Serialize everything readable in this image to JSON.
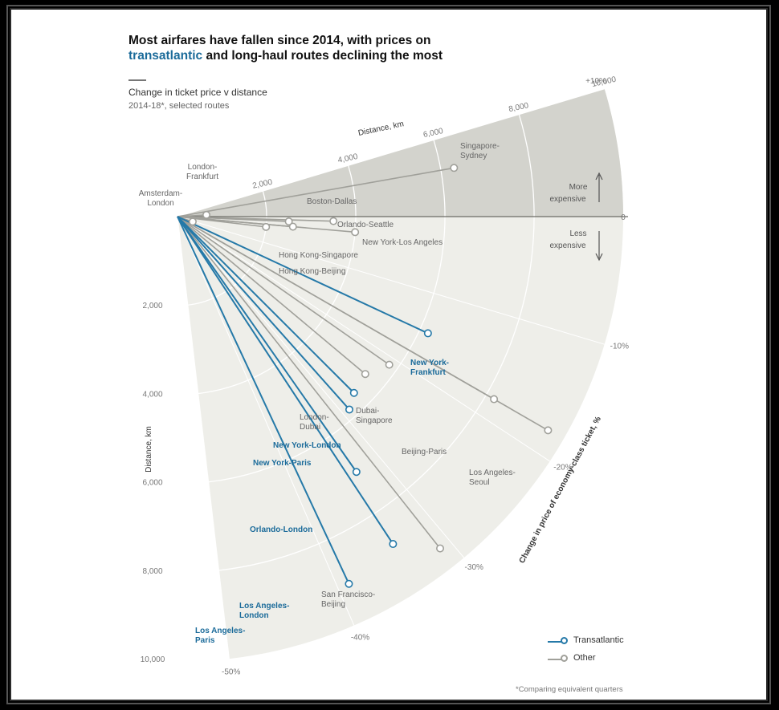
{
  "title": {
    "line1": "Most airfares have fallen since 2014, with prices on",
    "highlight": "transatlantic",
    "rest": " and long-haul routes declining the most"
  },
  "subtitle": "Change in ticket price v distance",
  "subnote": "2014-18*, selected routes",
  "footnote": "*Comparing equivalent quarters",
  "annotations": {
    "more": [
      "More",
      "expensive"
    ],
    "less": [
      "Less",
      "expensive"
    ]
  },
  "legend": [
    {
      "name": "Transatlantic",
      "color": "#2579a8"
    },
    {
      "name": "Other",
      "color": "#a0a09a"
    }
  ],
  "chart_data": {
    "type": "scatter",
    "xlabel": "Distance, km",
    "ylabel": "Change in price of economy-class ticket, %",
    "distance_ticks": [
      "2,000",
      "4,000",
      "6,000",
      "8,000",
      "10,000"
    ],
    "distance_tick_values": [
      2000,
      4000,
      6000,
      8000,
      10000
    ],
    "angle_ticks": [
      "+10%",
      "0",
      "-10%",
      "-20%",
      "-30%",
      "-40%",
      "-50%"
    ],
    "angle_tick_values": [
      10,
      0,
      -10,
      -20,
      -30,
      -40,
      -50
    ],
    "xlim": [
      0,
      10000
    ],
    "ylim": [
      -50,
      10
    ],
    "colors": {
      "transatlantic": "#2579a8",
      "other": "#a0a09a"
    },
    "points": [
      {
        "label": [
          "Singapore-",
          "Sydney"
        ],
        "distance": 6300,
        "change": 6,
        "group": "other"
      },
      {
        "label": [
          "London-",
          "Frankfurt"
        ],
        "distance": 650,
        "change": 2,
        "group": "other"
      },
      {
        "label": [
          "Amsterdam-",
          "London"
        ],
        "distance": 360,
        "change": -11,
        "group": "other"
      },
      {
        "label": [
          "Boston-Dallas"
        ],
        "distance": 2500,
        "change": -1.5,
        "group": "other"
      },
      {
        "label": [
          "Orlando-Seattle"
        ],
        "distance": 3500,
        "change": -1,
        "group": "other"
      },
      {
        "label": [
          "New York-Los Angeles"
        ],
        "distance": 4000,
        "change": -3,
        "group": "other"
      },
      {
        "label": [
          "Hong Kong-Singapore"
        ],
        "distance": 2600,
        "change": -3,
        "group": "other"
      },
      {
        "label": [
          "Hong Kong-Beijing"
        ],
        "distance": 2000,
        "change": -4,
        "group": "other"
      },
      {
        "label": [
          "New York-",
          "Frankfurt"
        ],
        "distance": 6200,
        "change": -15,
        "group": "transatlantic"
      },
      {
        "label": [
          "London-",
          "Dubai"
        ],
        "distance": 5500,
        "change": -24,
        "group": "other"
      },
      {
        "label": [
          "Dubai-",
          "Singapore"
        ],
        "distance": 5800,
        "change": -21,
        "group": "other"
      },
      {
        "label": [
          "Beijing-Paris"
        ],
        "distance": 8200,
        "change": -18,
        "group": "other"
      },
      {
        "label": [
          "Los Angeles-",
          "Seoul"
        ],
        "distance": 9600,
        "change": -18,
        "group": "other"
      },
      {
        "label": [
          "New York-London"
        ],
        "distance": 5600,
        "change": -27,
        "group": "transatlantic"
      },
      {
        "label": [
          "New York-Paris"
        ],
        "distance": 5800,
        "change": -29,
        "group": "transatlantic"
      },
      {
        "label": [
          "Orlando-London"
        ],
        "distance": 7000,
        "change": -33,
        "group": "transatlantic"
      },
      {
        "label": [
          "San Francisco-",
          "Beijing"
        ],
        "distance": 9500,
        "change": -31,
        "group": "other"
      },
      {
        "label": [
          "Los Angeles-",
          "London"
        ],
        "distance": 8800,
        "change": -34,
        "group": "transatlantic"
      },
      {
        "label": [
          "Los Angeles-",
          "Paris"
        ],
        "distance": 9100,
        "change": -39,
        "group": "transatlantic"
      }
    ]
  }
}
